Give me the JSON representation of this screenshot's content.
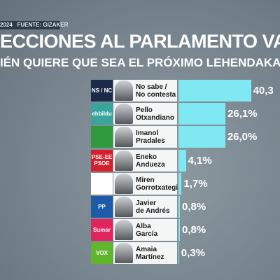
{
  "chart_data": {
    "type": "bar",
    "date": "2024",
    "source": "FUENTE: GIZAKER",
    "title": "ECCIONES AL PARLAMENTO VASCO",
    "subtitle": "IÉN QUIERE QUE SEA EL PRÓXIMO LEHENDAKARI?",
    "categories": [
      "No sabe /\nNo contesta",
      "Pello\nOtxandiano",
      "Imanol\nPradales",
      "Eneko\nAndueza",
      "Miren\nGorrotxategi",
      "Javier\nde Andrés",
      "Alba\nGarcía",
      "Amaia\nMartínez"
    ],
    "logos": [
      "NS / NC",
      "ehbildu",
      null,
      "PSE-EE\nPSOE",
      null,
      "PP",
      "Sumar",
      "VOX"
    ],
    "logo_colors": [
      "#1c2a4a",
      "#3aa59c",
      "#2f9a3c",
      "#d3202b",
      "#ffffff",
      "#1d5aa8",
      "#e2245d",
      "#5fb62d"
    ],
    "values": [
      40.3,
      26.1,
      26.0,
      4.1,
      1.7,
      0.8,
      0.8,
      0.3
    ],
    "value_labels": [
      "40,3",
      "26,1%",
      "26,0%",
      "4,1%",
      "1,7%",
      "0,8%",
      "0,8%",
      "0,3%"
    ],
    "color": "#7fe8f2"
  }
}
